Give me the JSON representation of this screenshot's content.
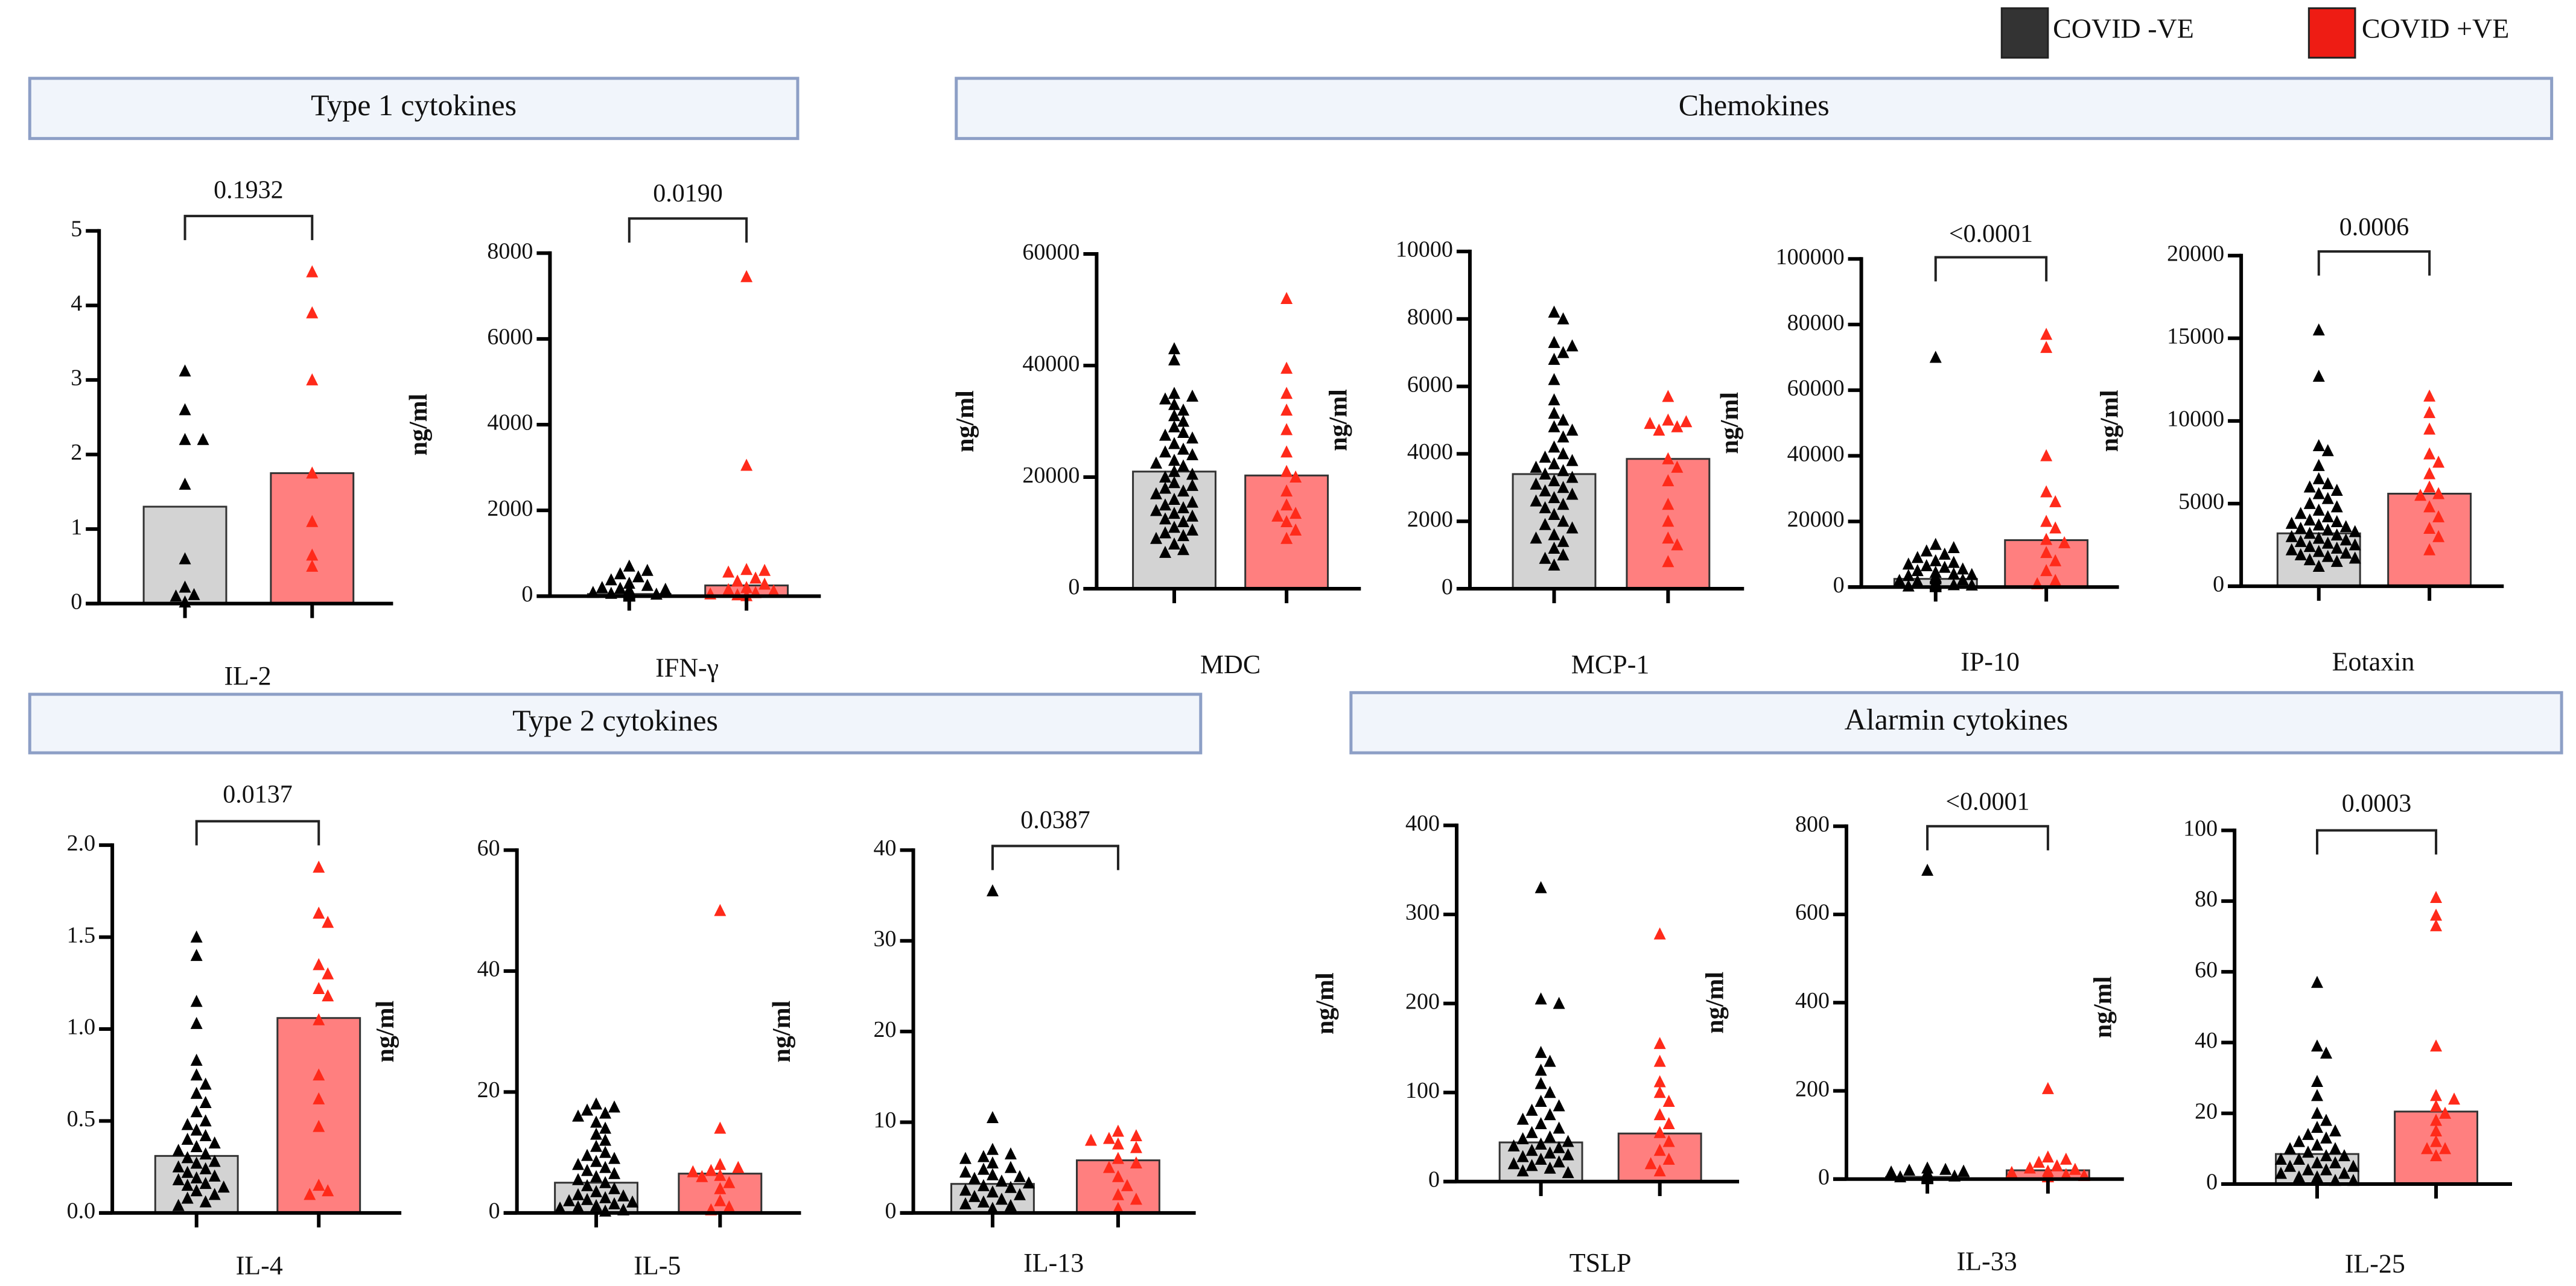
{
  "legend": [
    {
      "label": "COVID -VE",
      "color": "#333333"
    },
    {
      "label": "COVID +VE",
      "color": "#ee1c14"
    }
  ],
  "colors": {
    "neg_bar": "#d3d3d3",
    "pos_bar": "#ff7f7f",
    "neg_point": "#000000",
    "pos_point": "#ff2a1a",
    "bar_stroke": "#333333"
  },
  "groups": [
    "Type 1 cytokines",
    "Chemokines",
    "Type 2 cytokines",
    "Alarmin cytokines"
  ],
  "chart_data": [
    {
      "type": "bar",
      "title": "IL-2",
      "ylabel": "ng/ml",
      "ylim": [
        0,
        5
      ],
      "ticks": [
        0,
        1,
        2,
        3,
        4,
        5
      ],
      "tick_labels": [
        "0",
        "1",
        "2",
        "3",
        "4",
        "5"
      ],
      "pvalue": "0.1932",
      "series": [
        {
          "name": "COVID -VE",
          "mean": 1.3,
          "values": [
            3.12,
            2.6,
            2.2,
            2.2,
            1.6,
            0.6,
            0.22,
            0.12,
            0.1,
            0.02
          ]
        },
        {
          "name": "COVID +VE",
          "mean": 1.75,
          "values": [
            4.45,
            3.9,
            3.0,
            1.75,
            1.1,
            0.65,
            0.5
          ]
        }
      ]
    },
    {
      "type": "bar",
      "title": "IFN-γ",
      "ylabel": "ng/ml",
      "ylim": [
        0,
        8000
      ],
      "ticks": [
        0,
        2000,
        4000,
        6000,
        8000
      ],
      "tick_labels": [
        "0",
        "2000",
        "4000",
        "6000",
        "8000"
      ],
      "pvalue": "0.0190",
      "series": [
        {
          "name": "COVID -VE",
          "mean": 50,
          "values": [
            700,
            600,
            520,
            450,
            380,
            300,
            250,
            200,
            180,
            160,
            150,
            140,
            130,
            120,
            110,
            100,
            95,
            90,
            85,
            80,
            75,
            70,
            65,
            60,
            55,
            50,
            45,
            40,
            35,
            30,
            28,
            25,
            22,
            20,
            18,
            15,
            12,
            10,
            8,
            6,
            5,
            4,
            3,
            2,
            1
          ]
        },
        {
          "name": "COVID +VE",
          "mean": 250,
          "values": [
            7450,
            3050,
            620,
            600,
            560,
            420,
            350,
            280,
            200,
            150,
            120,
            80,
            50,
            30,
            10
          ]
        }
      ]
    },
    {
      "type": "bar",
      "title": "MDC",
      "ylabel": "ng/ml",
      "ylim": [
        0,
        60000
      ],
      "ticks": [
        0,
        20000,
        40000,
        60000
      ],
      "tick_labels": [
        "0",
        "20000",
        "40000",
        "60000"
      ],
      "pvalue": null,
      "series": [
        {
          "name": "COVID -VE",
          "mean": 21000,
          "values": [
            43000,
            41000,
            35000,
            34500,
            34000,
            33000,
            32000,
            31000,
            30000,
            29000,
            28000,
            27500,
            27000,
            26000,
            25000,
            24500,
            24000,
            23000,
            22500,
            22000,
            21000,
            20500,
            20000,
            19000,
            18500,
            18000,
            17500,
            17000,
            16000,
            15500,
            15000,
            14500,
            14000,
            13500,
            13000,
            12500,
            12000,
            11000,
            10500,
            10000,
            9500,
            9000,
            8000,
            7000,
            6500
          ]
        },
        {
          "name": "COVID +VE",
          "mean": 20300,
          "values": [
            52000,
            39500,
            35000,
            32000,
            28500,
            24500,
            21000,
            20000,
            17500,
            15000,
            13000,
            12000,
            10500,
            9000,
            13500
          ]
        }
      ]
    },
    {
      "type": "bar",
      "title": "MCP-1",
      "ylabel": "ng/ml",
      "ylim": [
        0,
        10000
      ],
      "ticks": [
        0,
        2000,
        4000,
        6000,
        8000,
        10000
      ],
      "tick_labels": [
        "0",
        "2000",
        "4000",
        "6000",
        "8000",
        "10000"
      ],
      "pvalue": null,
      "series": [
        {
          "name": "COVID -VE",
          "mean": 3400,
          "values": [
            8200,
            8000,
            7300,
            7200,
            7000,
            6800,
            6200,
            5600,
            5200,
            5000,
            4800,
            4700,
            4500,
            4200,
            4000,
            3900,
            3800,
            3700,
            3600,
            3500,
            3400,
            3300,
            3200,
            3100,
            3000,
            2900,
            2800,
            2700,
            2600,
            2500,
            2400,
            2200,
            2000,
            1900,
            1800,
            1600,
            1500,
            1400,
            1200,
            1000,
            900,
            700
          ]
        },
        {
          "name": "COVID +VE",
          "mean": 3850,
          "values": [
            5700,
            5000,
            4950,
            4900,
            4800,
            4700,
            3850,
            3600,
            3200,
            2500,
            2000,
            1500,
            1300,
            800
          ]
        }
      ]
    },
    {
      "type": "bar",
      "title": "IP-10",
      "ylabel": "ng/ml",
      "ylim": [
        0,
        100000
      ],
      "ticks": [
        0,
        20000,
        40000,
        60000,
        80000,
        100000
      ],
      "tick_labels": [
        "0",
        "20000",
        "40000",
        "60000",
        "80000",
        "100000"
      ],
      "pvalue": "<0.0001",
      "series": [
        {
          "name": "COVID -VE",
          "mean": 2500,
          "values": [
            70000,
            13000,
            12000,
            11000,
            10000,
            9000,
            8000,
            7500,
            7000,
            6500,
            6000,
            5500,
            5000,
            4500,
            4000,
            3800,
            3500,
            3200,
            3000,
            2800,
            2500,
            2200,
            2000,
            1800,
            1500,
            1200,
            1000,
            900,
            800,
            700,
            600,
            500,
            400,
            300,
            200,
            100
          ]
        },
        {
          "name": "COVID +VE",
          "mean": 14300,
          "values": [
            77000,
            73000,
            40000,
            29000,
            26000,
            20000,
            18000,
            14500,
            13500,
            10500,
            8000,
            5000,
            2000,
            1000
          ]
        }
      ]
    },
    {
      "type": "bar",
      "title": "Eotaxin",
      "ylabel": "ng/ml",
      "ylim": [
        0,
        20000
      ],
      "ticks": [
        0,
        5000,
        10000,
        15000,
        20000
      ],
      "tick_labels": [
        "0",
        "5000",
        "10000",
        "15000",
        "20000"
      ],
      "pvalue": "0.0006",
      "series": [
        {
          "name": "COVID -VE",
          "mean": 3200,
          "values": [
            15500,
            12700,
            8500,
            8200,
            7300,
            6500,
            6200,
            6000,
            5800,
            5600,
            5300,
            5000,
            4800,
            4600,
            4400,
            4200,
            4000,
            3900,
            3800,
            3700,
            3600,
            3500,
            3400,
            3300,
            3200,
            3100,
            3000,
            2900,
            2800,
            2700,
            2600,
            2500,
            2400,
            2300,
            2200,
            2100,
            2000,
            1900,
            1800,
            1700,
            1600,
            1500,
            1200
          ]
        },
        {
          "name": "COVID +VE",
          "mean": 5600,
          "values": [
            11500,
            10500,
            9500,
            8000,
            7500,
            6800,
            6000,
            5600,
            5500,
            4800,
            4200,
            3500,
            3000,
            2200
          ]
        }
      ]
    },
    {
      "type": "bar",
      "title": "IL-4",
      "ylabel": "ng/ml",
      "ylim": [
        0,
        2
      ],
      "ticks": [
        0,
        0.5,
        1,
        1.5,
        2
      ],
      "tick_labels": [
        "0.0",
        "0.5",
        "1.0",
        "1.5",
        "2.0"
      ],
      "pvalue": "0.0137",
      "series": [
        {
          "name": "COVID -VE",
          "mean": 0.31,
          "values": [
            1.5,
            1.4,
            1.15,
            1.03,
            0.83,
            0.75,
            0.7,
            0.65,
            0.6,
            0.55,
            0.5,
            0.48,
            0.45,
            0.42,
            0.4,
            0.38,
            0.36,
            0.34,
            0.32,
            0.3,
            0.28,
            0.27,
            0.25,
            0.24,
            0.22,
            0.2,
            0.19,
            0.18,
            0.16,
            0.15,
            0.14,
            0.12,
            0.1,
            0.08,
            0.06,
            0.04
          ]
        },
        {
          "name": "COVID +VE",
          "mean": 1.06,
          "values": [
            1.88,
            1.63,
            1.58,
            1.35,
            1.3,
            1.22,
            1.18,
            1.05,
            0.75,
            0.62,
            0.47,
            0.15,
            0.12,
            0.1
          ]
        }
      ]
    },
    {
      "type": "bar",
      "title": "IL-5",
      "ylabel": "ng/ml",
      "ylim": [
        0,
        60
      ],
      "ticks": [
        0,
        20,
        40,
        60
      ],
      "tick_labels": [
        "0",
        "20",
        "40",
        "60"
      ],
      "pvalue": null,
      "series": [
        {
          "name": "COVID -VE",
          "mean": 5,
          "values": [
            18,
            17.5,
            17,
            16.5,
            16,
            15,
            14,
            13,
            12,
            11,
            10,
            9.5,
            9,
            8.5,
            8,
            7.5,
            7,
            6.5,
            6,
            5.5,
            5,
            4.5,
            4,
            3.5,
            3,
            2.8,
            2.5,
            2.2,
            2,
            1.8,
            1.5,
            1.2,
            1,
            0.8,
            0.5,
            0.3
          ]
        },
        {
          "name": "COVID +VE",
          "mean": 6.5,
          "values": [
            50,
            14,
            8,
            7.5,
            7,
            6.8,
            6.2,
            6,
            5,
            4,
            2,
            1,
            0.5
          ]
        }
      ]
    },
    {
      "type": "bar",
      "title": "IL-13",
      "ylabel": "ng/ml",
      "ylim": [
        0,
        40
      ],
      "ticks": [
        0,
        10,
        20,
        30,
        40
      ],
      "tick_labels": [
        "0",
        "10",
        "20",
        "30",
        "40"
      ],
      "pvalue": "0.0387",
      "series": [
        {
          "name": "COVID -VE",
          "mean": 3.2,
          "values": [
            35.5,
            10.5,
            7,
            6.5,
            6.2,
            6,
            5.5,
            5,
            4.8,
            4.5,
            4.2,
            4,
            3.8,
            3.5,
            3.3,
            3,
            2.8,
            2.5,
            2.3,
            2,
            1.8,
            1.5,
            1.2,
            1,
            0.8,
            0.5
          ]
        },
        {
          "name": "COVID +VE",
          "mean": 5.8,
          "values": [
            9,
            8.5,
            8.2,
            8,
            7.6,
            7.2,
            6,
            5.5,
            5,
            4,
            3,
            2,
            1.5,
            0.5
          ]
        }
      ]
    },
    {
      "type": "bar",
      "title": "TSLP",
      "ylabel": "ng/ml",
      "ylim": [
        0,
        400
      ],
      "ticks": [
        0,
        100,
        200,
        300,
        400
      ],
      "tick_labels": [
        "0",
        "100",
        "200",
        "300",
        "400"
      ],
      "pvalue": null,
      "series": [
        {
          "name": "COVID -VE",
          "mean": 44,
          "values": [
            330,
            205,
            200,
            145,
            135,
            125,
            110,
            100,
            90,
            85,
            80,
            75,
            70,
            65,
            60,
            55,
            50,
            48,
            45,
            42,
            40,
            38,
            35,
            32,
            30,
            28,
            25,
            22,
            20,
            18,
            15,
            12,
            10
          ]
        },
        {
          "name": "COVID +VE",
          "mean": 54,
          "values": [
            278,
            155,
            135,
            112,
            100,
            90,
            75,
            65,
            55,
            45,
            35,
            25,
            20,
            12
          ]
        }
      ]
    },
    {
      "type": "bar",
      "title": "IL-33",
      "ylabel": "ng/ml",
      "ylim": [
        0,
        800
      ],
      "ticks": [
        0,
        200,
        400,
        600,
        800
      ],
      "tick_labels": [
        "0",
        "200",
        "400",
        "600",
        "800"
      ],
      "pvalue": "<0.0001",
      "series": [
        {
          "name": "COVID -VE",
          "mean": 5,
          "values": [
            700,
            25,
            22,
            20,
            18,
            16,
            15,
            14,
            13,
            12,
            11,
            10,
            9,
            8,
            8,
            7,
            6,
            6,
            5,
            5,
            4,
            4,
            3,
            3,
            2,
            2,
            1,
            1
          ]
        },
        {
          "name": "COVID +VE",
          "mean": 20,
          "values": [
            205,
            50,
            45,
            38,
            30,
            25,
            22,
            18,
            15,
            12,
            10,
            8,
            6,
            5
          ]
        }
      ]
    },
    {
      "type": "bar",
      "title": "IL-25",
      "ylabel": "ng/ml",
      "ylim": [
        0,
        100
      ],
      "ticks": [
        0,
        20,
        40,
        60,
        80,
        100
      ],
      "tick_labels": [
        "0",
        "20",
        "40",
        "60",
        "80",
        "100"
      ],
      "pvalue": "0.0003",
      "series": [
        {
          "name": "COVID -VE",
          "mean": 8.5,
          "values": [
            57,
            39,
            37,
            29,
            25,
            20,
            18,
            16,
            15,
            14,
            13,
            12,
            11,
            10,
            10,
            9,
            8,
            8,
            7,
            7,
            6,
            6,
            5,
            5,
            4,
            4,
            3,
            3,
            2,
            2,
            1,
            1
          ]
        },
        {
          "name": "COVID +VE",
          "mean": 20.5,
          "values": [
            81,
            76,
            73,
            39,
            25,
            24,
            22,
            20,
            18,
            15,
            12,
            10,
            10,
            8
          ]
        }
      ]
    }
  ]
}
